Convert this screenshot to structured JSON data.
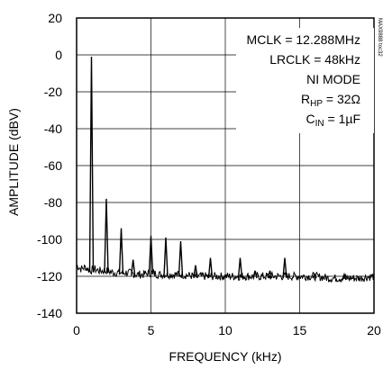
{
  "chart_data": {
    "type": "line",
    "title": "",
    "xlabel": "FREQUENCY (kHz)",
    "ylabel": "AMPLITUDE (dBV)",
    "xlim": [
      0,
      20
    ],
    "ylim": [
      -140,
      20
    ],
    "x_ticks": [
      0,
      5,
      10,
      15,
      20
    ],
    "y_ticks": [
      20,
      0,
      -20,
      -40,
      -60,
      -80,
      -100,
      -120,
      -140
    ],
    "grid": true,
    "series": [
      {
        "noise_floor": [
          [
            0.0,
            -114
          ],
          [
            0.3,
            -116
          ],
          [
            0.6,
            -115
          ],
          [
            0.9,
            -117
          ],
          [
            1.2,
            -116
          ],
          [
            1.5,
            -117
          ],
          [
            2.0,
            -117
          ],
          [
            2.5,
            -118
          ],
          [
            3.0,
            -118
          ],
          [
            3.5,
            -118
          ],
          [
            4.0,
            -119
          ],
          [
            4.5,
            -119
          ],
          [
            5.0,
            -118
          ],
          [
            5.5,
            -119
          ],
          [
            6.0,
            -119
          ],
          [
            7.0,
            -119
          ],
          [
            8.0,
            -120
          ],
          [
            9.0,
            -120
          ],
          [
            10.0,
            -120
          ],
          [
            11.0,
            -120
          ],
          [
            12.0,
            -120
          ],
          [
            13.0,
            -120
          ],
          [
            14.0,
            -120
          ],
          [
            15.0,
            -120
          ],
          [
            16.0,
            -120
          ],
          [
            17.0,
            -121
          ],
          [
            18.0,
            -121
          ],
          [
            19.0,
            -121
          ],
          [
            20.0,
            -120
          ]
        ],
        "peaks": [
          [
            1,
            -1
          ],
          [
            2,
            -78
          ],
          [
            3,
            -94
          ],
          [
            3.8,
            -111
          ],
          [
            5,
            -98
          ],
          [
            6,
            -99
          ],
          [
            7,
            -101
          ],
          [
            8,
            -114
          ],
          [
            9,
            -110
          ],
          [
            11,
            -110
          ],
          [
            12,
            -117
          ],
          [
            13,
            -117
          ],
          [
            14,
            -110
          ],
          [
            16,
            -119
          ],
          [
            18,
            -119
          ]
        ]
      }
    ],
    "annotations": {
      "mclk": "MCLK = 12.288MHz",
      "lrclk": "LRCLK = 48kHz",
      "mode": "NI MODE",
      "rhp_main": "R",
      "rhp_sub": "HP",
      "rhp_value": " = 32Ω",
      "cin_main": "C",
      "cin_sub": "IN",
      "cin_value": " = 1µF"
    },
    "side_code": "MAX9888 toc32"
  },
  "colors": {
    "trace": "#000000",
    "grid": "#000000",
    "background": "#ffffff"
  }
}
